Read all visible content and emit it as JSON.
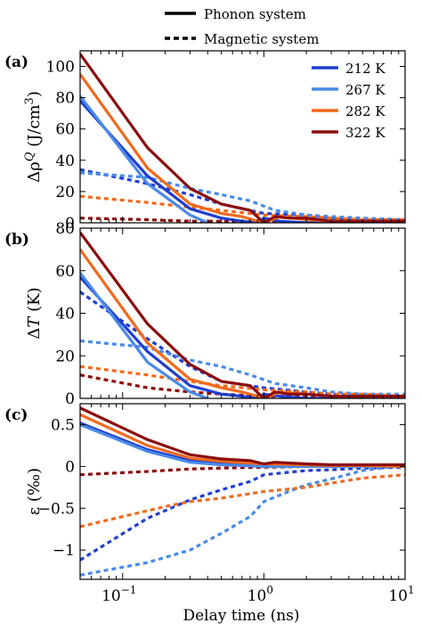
{
  "global_legend": [
    {
      "label": "Phonon system",
      "style": "solid"
    },
    {
      "label": "Magnetic system",
      "style": "dotted"
    }
  ],
  "legend": [
    {
      "label": "212 K",
      "color": "#1f3fd1"
    },
    {
      "label": "267 K",
      "color": "#4a8ae8"
    },
    {
      "label": "282 K",
      "color": "#f06a1e"
    },
    {
      "label": "322 K",
      "color": "#8b0d0d"
    }
  ],
  "xlabel": "Delay time (ns)",
  "x_scale": "log",
  "xlim": [
    0.05,
    10
  ],
  "x_ticks": [
    0.1,
    1,
    10
  ],
  "x_tick_labels": [
    "10",
    "10",
    "10"
  ],
  "x_tick_exponents": [
    "−1",
    "0",
    "1"
  ],
  "chart_data": [
    {
      "type": "line",
      "panel_label": "(a)",
      "ylabel": "Δρ",
      "ylabel_sup": "Q",
      "ylabel_unit": "(J/cm",
      "ylabel_unit_sup": "3",
      "ylabel_unit_end": ")",
      "ylim": [
        0,
        110
      ],
      "y_ticks": [
        0,
        20,
        40,
        60,
        80,
        100
      ],
      "y_tick_labels": [
        "0",
        "20",
        "40",
        "60",
        "80",
        "100"
      ],
      "series": [
        {
          "name": "212 K",
          "system": "phonon",
          "color": "#1f3fd1",
          "x": [
            0.05,
            0.15,
            0.3,
            0.5,
            0.7,
            0.9,
            1.0,
            1.3,
            2,
            3,
            5,
            10
          ],
          "y": [
            78,
            30,
            9,
            3,
            1,
            0,
            3,
            1,
            0,
            0,
            0,
            0
          ]
        },
        {
          "name": "267 K",
          "system": "phonon",
          "color": "#4a8ae8",
          "x": [
            0.05,
            0.15,
            0.3,
            0.4
          ],
          "y": [
            81,
            25,
            5,
            0
          ]
        },
        {
          "name": "282 K",
          "system": "phonon",
          "color": "#f06a1e",
          "x": [
            0.05,
            0.15,
            0.3,
            0.5,
            0.7,
            0.9,
            1.0,
            1.3,
            2,
            3,
            5,
            10
          ],
          "y": [
            95,
            35,
            12,
            6,
            4,
            1,
            0,
            4,
            2,
            1,
            1,
            0
          ]
        },
        {
          "name": "322 K",
          "system": "phonon",
          "color": "#8b0d0d",
          "x": [
            0.05,
            0.15,
            0.3,
            0.5,
            0.8,
            1.0,
            1.2,
            1.5,
            2,
            3,
            5,
            10
          ],
          "y": [
            108,
            48,
            22,
            12,
            8,
            0,
            4,
            3,
            3,
            1,
            1,
            1
          ]
        },
        {
          "name": "212 K",
          "system": "magnetic",
          "color": "#1f3fd1",
          "x": [
            0.05,
            0.15,
            0.3,
            0.5,
            1.0,
            2,
            3,
            5,
            10
          ],
          "y": [
            34,
            25,
            18,
            12,
            6,
            5,
            3,
            2,
            1
          ]
        },
        {
          "name": "267 K",
          "system": "magnetic",
          "color": "#4a8ae8",
          "x": [
            0.05,
            0.15,
            0.3,
            0.5,
            0.8,
            1.2,
            2,
            3,
            5,
            10
          ],
          "y": [
            32,
            29,
            22,
            18,
            14,
            8,
            5,
            4,
            3,
            2
          ]
        },
        {
          "name": "282 K",
          "system": "magnetic",
          "color": "#f06a1e",
          "x": [
            0.05,
            0.15,
            0.3,
            0.5,
            1.0,
            2,
            3,
            5,
            10
          ],
          "y": [
            17,
            13,
            10,
            8,
            5,
            4,
            3,
            2,
            2
          ]
        },
        {
          "name": "322 K",
          "system": "magnetic",
          "color": "#8b0d0d",
          "x": [
            0.05,
            0.15,
            0.3,
            0.5,
            1.0,
            2,
            3,
            5,
            10
          ],
          "y": [
            3,
            2,
            1,
            1,
            1,
            0,
            0,
            0,
            0
          ]
        }
      ]
    },
    {
      "type": "line",
      "panel_label": "(b)",
      "ylabel": "Δ",
      "ylabel_var": "T",
      "ylabel_unit": "(K)",
      "ylim": [
        0,
        80
      ],
      "y_ticks": [
        0,
        20,
        40,
        60,
        80
      ],
      "y_tick_labels": [
        "0",
        "20",
        "40",
        "60",
        "80"
      ],
      "series": [
        {
          "name": "212 K",
          "system": "phonon",
          "color": "#1f3fd1",
          "x": [
            0.05,
            0.15,
            0.3,
            0.5,
            0.7,
            0.9,
            1.0,
            1.3,
            2,
            3,
            5,
            10
          ],
          "y": [
            57,
            22,
            6,
            2,
            1,
            0,
            2,
            1,
            0,
            0,
            0,
            0
          ]
        },
        {
          "name": "267 K",
          "system": "phonon",
          "color": "#4a8ae8",
          "x": [
            0.05,
            0.15,
            0.3,
            0.4
          ],
          "y": [
            59,
            17,
            3,
            0
          ]
        },
        {
          "name": "282 K",
          "system": "phonon",
          "color": "#f06a1e",
          "x": [
            0.05,
            0.15,
            0.3,
            0.5,
            0.7,
            0.9,
            1.0,
            1.3,
            2,
            3,
            5,
            10
          ],
          "y": [
            70,
            26,
            9,
            5,
            3,
            1,
            0,
            3,
            2,
            1,
            1,
            0
          ]
        },
        {
          "name": "322 K",
          "system": "phonon",
          "color": "#8b0d0d",
          "x": [
            0.05,
            0.15,
            0.3,
            0.5,
            0.8,
            1.0,
            1.2,
            1.5,
            2,
            3,
            5,
            10
          ],
          "y": [
            78,
            35,
            16,
            8,
            6,
            0,
            3,
            2,
            2,
            1,
            1,
            1
          ]
        },
        {
          "name": "212 K",
          "system": "magnetic",
          "color": "#1f3fd1",
          "x": [
            0.05,
            0.15,
            0.3,
            0.5,
            1.0,
            2,
            3,
            5,
            10
          ],
          "y": [
            50,
            28,
            15,
            8,
            5,
            3,
            2,
            1,
            1
          ]
        },
        {
          "name": "267 K",
          "system": "magnetic",
          "color": "#4a8ae8",
          "x": [
            0.05,
            0.15,
            0.3,
            0.5,
            0.8,
            1.2,
            2,
            3,
            5,
            10
          ],
          "y": [
            27,
            24,
            18,
            15,
            11,
            7,
            5,
            3,
            2,
            2
          ]
        },
        {
          "name": "282 K",
          "system": "magnetic",
          "color": "#f06a1e",
          "x": [
            0.05,
            0.15,
            0.3,
            0.5,
            1.0,
            2,
            3,
            5,
            10
          ],
          "y": [
            15,
            11,
            8,
            6,
            4,
            3,
            2,
            2,
            1
          ]
        },
        {
          "name": "322 K",
          "system": "magnetic",
          "color": "#8b0d0d",
          "x": [
            0.05,
            0.15,
            0.3,
            0.5,
            1.0,
            2,
            3,
            5,
            10
          ],
          "y": [
            11,
            5,
            3,
            2,
            1,
            1,
            0,
            0,
            0
          ]
        }
      ]
    },
    {
      "type": "line",
      "panel_label": "(c)",
      "ylabel": "ε",
      "ylabel_unit": "(‰)",
      "ylim": [
        -1.35,
        0.75
      ],
      "y_ticks": [
        -1,
        -0.5,
        0,
        0.5
      ],
      "y_tick_labels": [
        "−1",
        "−0.5",
        "0",
        "0.5"
      ],
      "series": [
        {
          "name": "212 K",
          "system": "phonon",
          "color": "#1f3fd1",
          "x": [
            0.05,
            0.15,
            0.3,
            0.5,
            1.0,
            2,
            3,
            5,
            10
          ],
          "y": [
            0.52,
            0.2,
            0.07,
            0.03,
            0.01,
            0.0,
            0.0,
            0.0,
            0.0
          ]
        },
        {
          "name": "267 K",
          "system": "phonon",
          "color": "#4a8ae8",
          "x": [
            0.05,
            0.15,
            0.3,
            0.5,
            1.0,
            2,
            3,
            5,
            10
          ],
          "y": [
            0.5,
            0.18,
            0.05,
            0.02,
            0.0,
            0.0,
            0.0,
            0.0,
            0.0
          ]
        },
        {
          "name": "282 K",
          "system": "phonon",
          "color": "#f06a1e",
          "x": [
            0.05,
            0.15,
            0.3,
            0.5,
            1.0,
            2,
            3,
            5,
            10
          ],
          "y": [
            0.62,
            0.25,
            0.1,
            0.06,
            0.03,
            0.02,
            0.01,
            0.01,
            0.0
          ]
        },
        {
          "name": "322 K",
          "system": "phonon",
          "color": "#8b0d0d",
          "x": [
            0.05,
            0.15,
            0.3,
            0.5,
            0.8,
            1.0,
            1.2,
            2,
            3,
            5,
            10
          ],
          "y": [
            0.7,
            0.32,
            0.14,
            0.09,
            0.07,
            0.03,
            0.05,
            0.03,
            0.02,
            0.02,
            0.02
          ]
        },
        {
          "name": "212 K",
          "system": "magnetic",
          "color": "#1f3fd1",
          "x": [
            0.05,
            0.15,
            0.3,
            0.5,
            0.8,
            1.0,
            1.5,
            2,
            3,
            5,
            10
          ],
          "y": [
            -1.12,
            -0.62,
            -0.4,
            -0.28,
            -0.18,
            -0.1,
            -0.07,
            -0.05,
            -0.04,
            -0.02,
            -0.01
          ]
        },
        {
          "name": "267 K",
          "system": "magnetic",
          "color": "#4a8ae8",
          "x": [
            0.05,
            0.15,
            0.3,
            0.5,
            0.8,
            1.0,
            1.5,
            2,
            3,
            5,
            10
          ],
          "y": [
            -1.3,
            -1.15,
            -1.0,
            -0.8,
            -0.6,
            -0.42,
            -0.3,
            -0.22,
            -0.15,
            -0.05,
            0.02
          ]
        },
        {
          "name": "282 K",
          "system": "magnetic",
          "color": "#f06a1e",
          "x": [
            0.05,
            0.1,
            0.2,
            0.3,
            0.5,
            1.0,
            2,
            3,
            5,
            10
          ],
          "y": [
            -0.72,
            -0.6,
            -0.48,
            -0.42,
            -0.38,
            -0.3,
            -0.25,
            -0.2,
            -0.14,
            -0.1
          ]
        },
        {
          "name": "322 K",
          "system": "magnetic",
          "color": "#8b0d0d",
          "x": [
            0.05,
            0.15,
            0.3,
            0.5,
            1.0,
            2,
            3,
            5,
            10
          ],
          "y": [
            -0.1,
            -0.06,
            -0.03,
            -0.02,
            -0.01,
            0.0,
            0.0,
            0.0,
            0.0
          ]
        }
      ]
    }
  ]
}
